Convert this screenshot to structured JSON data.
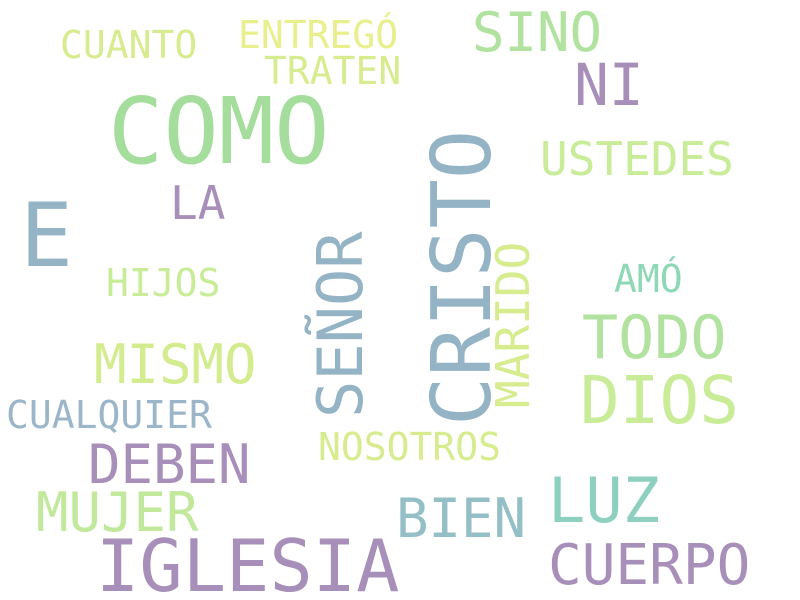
{
  "words": {
    "como": {
      "text": "COMO",
      "color": "#a5dd9d"
    },
    "cristo": {
      "text": "CRISTO",
      "color": "#94b4c6"
    },
    "iglesia": {
      "text": "IGLESIA",
      "color": "#a78fb9"
    },
    "e": {
      "text": "E",
      "color": "#94b4c6"
    },
    "dios": {
      "text": "DIOS",
      "color": "#c9ec98"
    },
    "senor": {
      "text": "SEÑOR",
      "color": "#94b4c6"
    },
    "todo": {
      "text": "TODO",
      "color": "#b2e2a0"
    },
    "ni": {
      "text": "NI",
      "color": "#a78fb9"
    },
    "sino": {
      "text": "SINO",
      "color": "#b2e2a0"
    },
    "luz": {
      "text": "LUZ",
      "color": "#8ed0c0"
    },
    "cuerpo": {
      "text": "CUERPO",
      "color": "#a78fb9"
    },
    "deben": {
      "text": "DEBEN",
      "color": "#a78fb9"
    },
    "mismo": {
      "text": "MISMO",
      "color": "#d3ec90"
    },
    "mujer": {
      "text": "MUJER",
      "color": "#c1e89b"
    },
    "bien": {
      "text": "BIEN",
      "color": "#94bfc6"
    },
    "marido": {
      "text": "MARIDO",
      "color": "#d6ec8e"
    },
    "ustedes": {
      "text": "USTEDES",
      "color": "#c9ec98"
    },
    "la": {
      "text": "LA",
      "color": "#a78fb9"
    },
    "cualquier": {
      "text": "CUALQUIER",
      "color": "#9cb6c9"
    },
    "nosotros": {
      "text": "NOSOTROS",
      "color": "#d6ec8e"
    },
    "hijos": {
      "text": "HIJOS",
      "color": "#c9ec98"
    },
    "amo": {
      "text": "AMÓ",
      "color": "#8ed8b6"
    },
    "cuanto": {
      "text": "CUANTO",
      "color": "#d6ec8e"
    },
    "entrego": {
      "text": "ENTREGÓ",
      "color": "#e8ef8c"
    },
    "traten": {
      "text": "TRATEN",
      "color": "#d6ec8e"
    }
  }
}
